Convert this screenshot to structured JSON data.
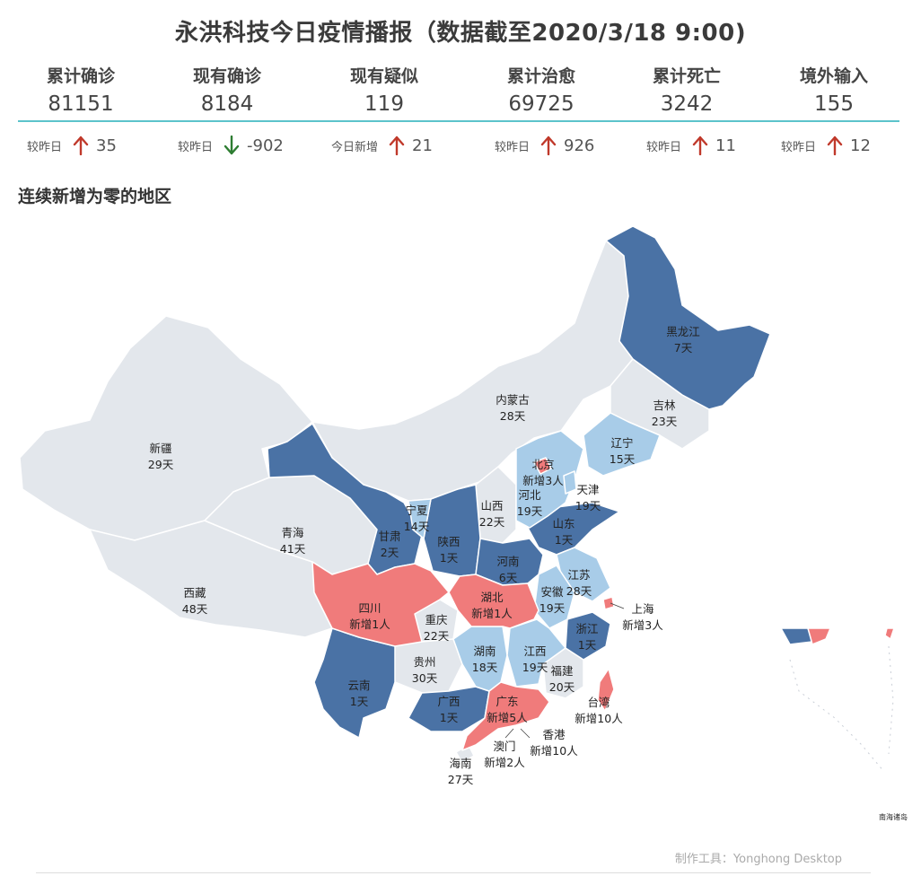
{
  "header": {
    "title": "永洪科技今日疫情播报（数据截至2020/3/18 9:00)"
  },
  "stats": [
    {
      "label": "累计确诊",
      "value": "81151",
      "delta_label": "较昨日",
      "direction": "up",
      "delta": "35"
    },
    {
      "label": "现有确诊",
      "value": "8184",
      "delta_label": "较昨日",
      "direction": "down",
      "delta": "-902"
    },
    {
      "label": "现有疑似",
      "value": "119",
      "delta_label": "今日新增",
      "direction": "up",
      "delta": "21"
    },
    {
      "label": "累计治愈",
      "value": "69725",
      "delta_label": "较昨日",
      "direction": "up",
      "delta": "926"
    },
    {
      "label": "累计死亡",
      "value": "3242",
      "delta_label": "较昨日",
      "direction": "up",
      "delta": "11"
    },
    {
      "label": "境外输入",
      "value": "155",
      "delta_label": "较昨日",
      "direction": "up",
      "delta": "12"
    }
  ],
  "section": {
    "title": "连续新增为零的地区"
  },
  "colors": {
    "accent_line": "#5cc3cb",
    "up_arrow": "#c0392b",
    "down_arrow": "#2e7d32",
    "new_cases": "#f07b7b",
    "dark_blue": "#4a72a5",
    "light_blue": "#a8cce8",
    "gray_region": "#e3e7ec"
  },
  "map": {
    "regions": [
      {
        "name": "新疆",
        "status": "29天"
      },
      {
        "name": "西藏",
        "status": "48天"
      },
      {
        "name": "青海",
        "status": "41天"
      },
      {
        "name": "内蒙古",
        "status": "28天"
      },
      {
        "name": "黑龙江",
        "status": "7天"
      },
      {
        "name": "吉林",
        "status": "23天"
      },
      {
        "name": "辽宁",
        "status": "15天"
      },
      {
        "name": "北京",
        "status": "新增3人"
      },
      {
        "name": "天津",
        "status": "19天"
      },
      {
        "name": "河北",
        "status": "19天"
      },
      {
        "name": "山西",
        "status": "22天"
      },
      {
        "name": "山东",
        "status": "1天"
      },
      {
        "name": "宁夏",
        "status": "14天"
      },
      {
        "name": "甘肃",
        "status": "2天"
      },
      {
        "name": "陕西",
        "status": "1天"
      },
      {
        "name": "河南",
        "status": "6天"
      },
      {
        "name": "江苏",
        "status": "28天"
      },
      {
        "name": "安徽",
        "status": "19天"
      },
      {
        "name": "上海",
        "status": "新增3人"
      },
      {
        "name": "湖北",
        "status": "新增1人"
      },
      {
        "name": "四川",
        "status": "新增1人"
      },
      {
        "name": "重庆",
        "status": "22天"
      },
      {
        "name": "浙江",
        "status": "1天"
      },
      {
        "name": "贵州",
        "status": "30天"
      },
      {
        "name": "湖南",
        "status": "18天"
      },
      {
        "name": "江西",
        "status": "19天"
      },
      {
        "name": "福建",
        "status": "20天"
      },
      {
        "name": "云南",
        "status": "1天"
      },
      {
        "name": "广西",
        "status": "1天"
      },
      {
        "name": "广东",
        "status": "新增5人"
      },
      {
        "name": "台湾",
        "status": "新增10人"
      },
      {
        "name": "香港",
        "status": "新增10人"
      },
      {
        "name": "澳门",
        "status": "新增2人"
      },
      {
        "name": "海南",
        "status": "27天"
      }
    ],
    "inset_label": "南海诸岛"
  },
  "footer": {
    "credit": "制作工具：Yonghong Desktop"
  }
}
